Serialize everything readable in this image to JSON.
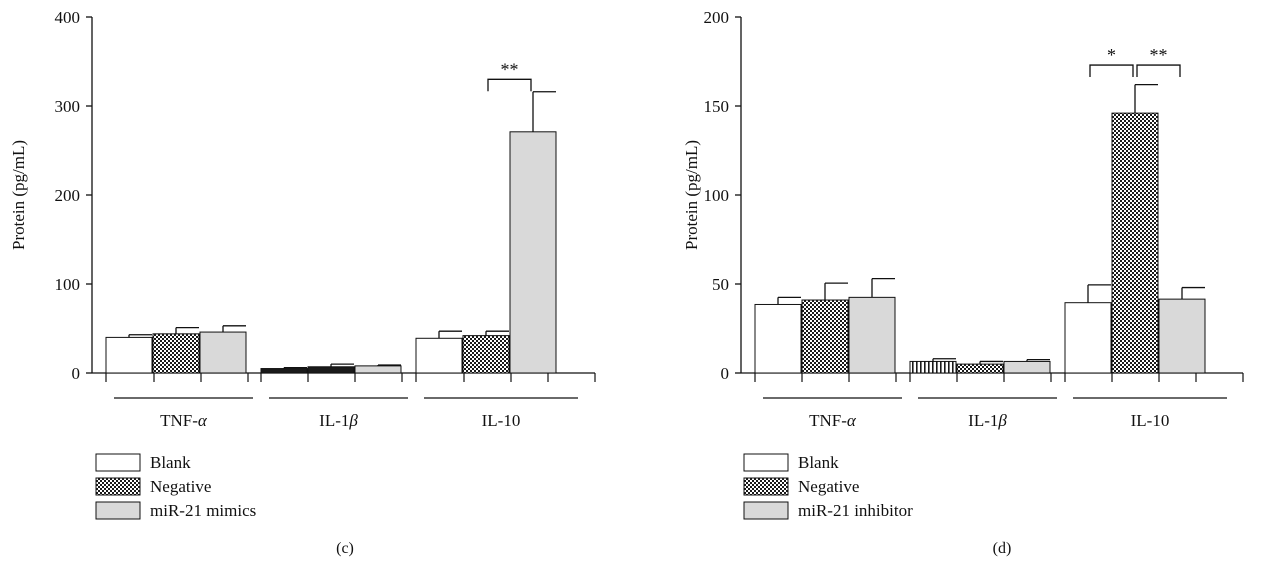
{
  "chart_data": [
    {
      "type": "bar",
      "panel_label": "(c)",
      "ylabel": "Protein (pg/mL)",
      "ylim": [
        0,
        400
      ],
      "yticks": [
        0,
        100,
        200,
        300,
        400
      ],
      "categories": [
        "TNF-α",
        "IL-1β",
        "IL-10"
      ],
      "categories_display": [
        [
          "TNF-",
          "α",
          ""
        ],
        [
          "IL-1",
          "β",
          ""
        ],
        [
          "IL-10",
          "",
          ""
        ]
      ],
      "series": [
        {
          "name": "Blank",
          "pattern": "white",
          "values": [
            40,
            5,
            39
          ],
          "errors": [
            3,
            1,
            8
          ]
        },
        {
          "name": "Negative",
          "pattern": "checker",
          "values": [
            44,
            7,
            42
          ],
          "errors": [
            7,
            3,
            5
          ]
        },
        {
          "name": "miR-21 mimics",
          "pattern": "gray",
          "values": [
            46,
            8,
            271
          ],
          "errors": [
            7,
            1,
            45
          ]
        }
      ],
      "significance": [
        {
          "group": 2,
          "from": 1,
          "to": 2,
          "label": "**",
          "y": 330
        }
      ],
      "legend_position": "bottom-left"
    },
    {
      "type": "bar",
      "panel_label": "(d)",
      "ylabel": "Protein (pg/mL)",
      "ylim": [
        0,
        200
      ],
      "yticks": [
        0,
        50,
        100,
        150,
        200
      ],
      "categories": [
        "TNF-α",
        "IL-1β",
        "IL-10"
      ],
      "categories_display": [
        [
          "TNF-",
          "α",
          ""
        ],
        [
          "IL-1",
          "β",
          ""
        ],
        [
          "IL-10",
          "",
          ""
        ]
      ],
      "series": [
        {
          "name": "Blank",
          "pattern": "white",
          "values": [
            38.5,
            6.5,
            39.5
          ],
          "errors": [
            4,
            1.5,
            10
          ]
        },
        {
          "name": "Negative",
          "pattern": "checker",
          "values": [
            41,
            5,
            146
          ],
          "errors": [
            9.5,
            1.5,
            16
          ]
        },
        {
          "name": "miR-21 inhibitor",
          "pattern": "gray",
          "values": [
            42.5,
            6.5,
            41.5
          ],
          "errors": [
            10.5,
            1,
            6.5
          ]
        }
      ],
      "significance": [
        {
          "group": 2,
          "from": 0,
          "to": 1,
          "label": "*",
          "y": 173
        },
        {
          "group": 2,
          "from": 1,
          "to": 2,
          "label": "**",
          "y": 173
        }
      ],
      "legend_position": "bottom-left"
    }
  ]
}
